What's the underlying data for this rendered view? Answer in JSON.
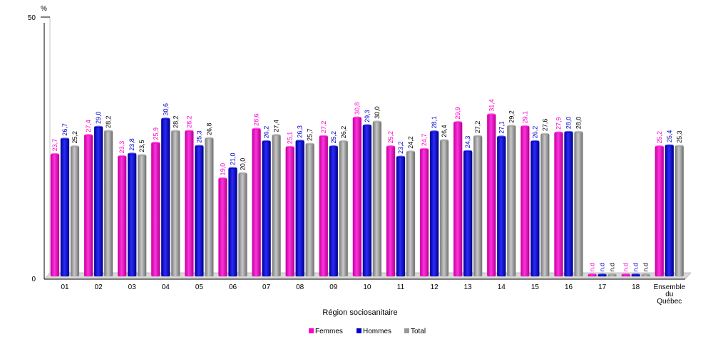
{
  "chart_data": {
    "type": "bar",
    "title": "",
    "xlabel": "Région sociosanitaire",
    "ylabel": "%",
    "ylim": [
      0,
      50
    ],
    "y_ticks": [
      "0",
      "50"
    ],
    "grid": false,
    "legend_position": "bottom-center",
    "categories": [
      "01",
      "02",
      "03",
      "04",
      "05",
      "06",
      "07",
      "08",
      "09",
      "10",
      "11",
      "12",
      "13",
      "14",
      "15",
      "16",
      "17",
      "18",
      "Ensemble du Québec"
    ],
    "series": [
      {
        "name": "Femmes",
        "color": "#ff00cc",
        "label_color": "#ff00cc",
        "values": [
          23.7,
          27.4,
          23.3,
          25.9,
          28.2,
          19.0,
          28.6,
          25.1,
          27.2,
          30.8,
          25.2,
          24.7,
          29.9,
          31.4,
          29.1,
          27.9,
          null,
          null,
          25.2
        ],
        "labels": [
          "23,7",
          "27,4",
          "23,3",
          "25,9",
          "28,2",
          "19,0",
          "28,6",
          "25,1",
          "27,2",
          "30,8",
          "25,2",
          "24,7",
          "29,9",
          "31,4",
          "29,1",
          "27,9",
          "n.d",
          "n.d",
          "25,2"
        ]
      },
      {
        "name": "Hommes",
        "color": "#0000cc",
        "label_color": "#0000cc",
        "values": [
          26.7,
          29.0,
          23.8,
          30.6,
          25.3,
          21.0,
          26.2,
          26.3,
          25.2,
          29.3,
          23.2,
          28.1,
          24.3,
          27.1,
          26.2,
          28.0,
          null,
          null,
          25.4
        ],
        "labels": [
          "26,7",
          "29,0",
          "23,8",
          "30,6",
          "25,3",
          "21,0",
          "26,2",
          "26,3",
          "25,2",
          "29,3",
          "23,2",
          "28,1",
          "24,3",
          "27,1",
          "26,2",
          "28,0",
          "n.d",
          "n.d",
          "25,4"
        ]
      },
      {
        "name": "Total",
        "color": "#999999",
        "label_color": "#000000",
        "values": [
          25.2,
          28.2,
          23.5,
          28.2,
          26.8,
          20.0,
          27.4,
          25.7,
          26.2,
          30.0,
          24.2,
          26.4,
          27.2,
          29.2,
          27.6,
          28.0,
          null,
          null,
          25.3
        ],
        "labels": [
          "25,2",
          "28,2",
          "23,5",
          "28,2",
          "26,8",
          "20,0",
          "27,4",
          "25,7",
          "26,2",
          "30,0",
          "24,2",
          "26,4",
          "27,2",
          "29,2",
          "27,6",
          "28,0",
          "n.d",
          "n.d",
          "25,3"
        ]
      }
    ]
  }
}
